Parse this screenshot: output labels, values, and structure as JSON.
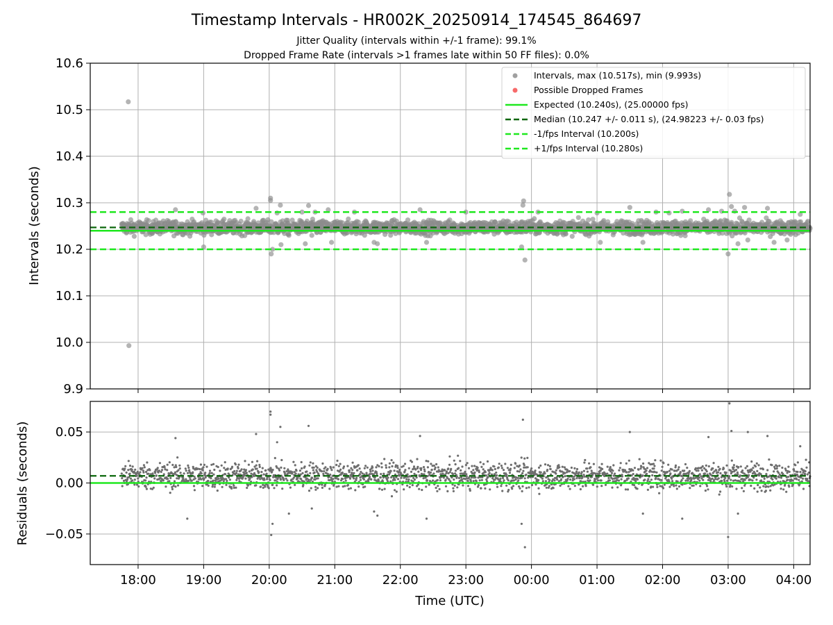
{
  "chart_data": [
    {
      "type": "scatter",
      "title": "Timestamp Intervals - HR002K_20250914_174545_864697",
      "subtitles": [
        "Jitter Quality (intervals within +/-1 frame): 99.1%",
        "Dropped Frame Rate (intervals >1 frames late within 50 FF files): 0.0%"
      ],
      "xlabel": "",
      "ylabel": "Intervals (seconds)",
      "xlim": [
        -0.73,
        10.25
      ],
      "x_tick_values": [
        0,
        1,
        2,
        3,
        4,
        5,
        6,
        7,
        8,
        9,
        10
      ],
      "x_tick_labels": [
        "18:00",
        "19:00",
        "20:00",
        "21:00",
        "22:00",
        "23:00",
        "00:00",
        "01:00",
        "02:00",
        "03:00",
        "04:00"
      ],
      "ylim": [
        9.9,
        10.6
      ],
      "y_ticks": [
        "9.9",
        "10.0",
        "10.1",
        "10.2",
        "10.3",
        "10.4",
        "10.5",
        "10.6"
      ],
      "y_tick_values": [
        9.9,
        10.0,
        10.1,
        10.2,
        10.3,
        10.4,
        10.5,
        10.6
      ],
      "grid": true,
      "legend_position": "top-right",
      "legend": [
        {
          "label": "Intervals, max (10.517s), min (9.993s)",
          "kind": "marker",
          "color": "#a0a0a0"
        },
        {
          "label": "Possible Dropped Frames",
          "kind": "marker",
          "color": "#f76a6a"
        },
        {
          "label": "Expected (10.240s), (25.00000 fps)",
          "kind": "line",
          "color": "#1ee81e",
          "dash": false
        },
        {
          "label": "Median (10.247 +/- 0.011 s), (24.98223 +/- 0.03 fps)",
          "kind": "line",
          "color": "#0a660a",
          "dash": true
        },
        {
          "label": "-1/fps Interval (10.200s)",
          "kind": "line",
          "color": "#1ee81e",
          "dash": true
        },
        {
          "label": "+1/fps Interval (10.280s)",
          "kind": "line",
          "color": "#1ee81e",
          "dash": true
        }
      ],
      "reference_lines": {
        "expected": 10.24,
        "median": 10.247,
        "minus_one_fps": 10.2,
        "plus_one_fps": 10.28
      },
      "series": [
        {
          "name": "Intervals, max (10.517s), min (9.993s)",
          "color": "#8c8c8c",
          "approximate_band": {
            "x_start": -0.25,
            "x_end": 10.25,
            "center": 10.247,
            "spread": 0.012
          },
          "points": [
            [
              -0.15,
              10.517
            ],
            [
              -0.14,
              9.993
            ],
            [
              0.57,
              10.285
            ],
            [
              0.99,
              10.278
            ],
            [
              1.0,
              10.205
            ],
            [
              1.8,
              10.288
            ],
            [
              1.9,
              10.262
            ],
            [
              2.02,
              10.31
            ],
            [
              2.02,
              10.305
            ],
            [
              2.03,
              10.19
            ],
            [
              2.05,
              10.2
            ],
            [
              2.12,
              10.278
            ],
            [
              2.17,
              10.295
            ],
            [
              2.18,
              10.21
            ],
            [
              2.3,
              10.23
            ],
            [
              2.5,
              10.28
            ],
            [
              2.55,
              10.212
            ],
            [
              2.6,
              10.294
            ],
            [
              2.65,
              10.23
            ],
            [
              2.7,
              10.28
            ],
            [
              2.9,
              10.285
            ],
            [
              2.95,
              10.215
            ],
            [
              3.3,
              10.28
            ],
            [
              3.6,
              10.215
            ],
            [
              3.65,
              10.212
            ],
            [
              4.3,
              10.285
            ],
            [
              4.4,
              10.215
            ],
            [
              4.5,
              10.235
            ],
            [
              5.0,
              10.28
            ],
            [
              5.85,
              10.205
            ],
            [
              5.87,
              10.295
            ],
            [
              5.88,
              10.304
            ],
            [
              5.9,
              10.177
            ],
            [
              5.95,
              10.26
            ],
            [
              6.1,
              10.28
            ],
            [
              7.0,
              10.278
            ],
            [
              7.05,
              10.215
            ],
            [
              7.5,
              10.29
            ],
            [
              7.7,
              10.215
            ],
            [
              7.9,
              10.28
            ],
            [
              8.1,
              10.278
            ],
            [
              8.3,
              10.282
            ],
            [
              8.7,
              10.285
            ],
            [
              8.9,
              10.282
            ],
            [
              9.0,
              10.19
            ],
            [
              9.02,
              10.318
            ],
            [
              9.05,
              10.292
            ],
            [
              9.1,
              10.282
            ],
            [
              9.15,
              10.212
            ],
            [
              9.25,
              10.29
            ],
            [
              9.3,
              10.22
            ],
            [
              9.6,
              10.288
            ],
            [
              9.7,
              10.215
            ],
            [
              9.9,
              10.22
            ],
            [
              10.1,
              10.275
            ]
          ]
        },
        {
          "name": "Possible Dropped Frames",
          "color": "#f76a6a",
          "points": []
        }
      ]
    },
    {
      "type": "scatter",
      "title": "",
      "xlabel": "Time (UTC)",
      "ylabel": "Residuals (seconds)",
      "xlim": [
        -0.73,
        10.25
      ],
      "x_tick_values": [
        0,
        1,
        2,
        3,
        4,
        5,
        6,
        7,
        8,
        9,
        10
      ],
      "x_tick_labels": [
        "18:00",
        "19:00",
        "20:00",
        "21:00",
        "22:00",
        "23:00",
        "00:00",
        "01:00",
        "02:00",
        "03:00",
        "04:00"
      ],
      "ylim": [
        -0.08,
        0.08
      ],
      "y_ticks": [
        "−0.05",
        "0.00",
        "0.05"
      ],
      "y_tick_values": [
        -0.05,
        0.0,
        0.05
      ],
      "grid": true,
      "reference_lines": {
        "zero": 0.0,
        "median_residual": 0.007
      },
      "series": [
        {
          "name": "",
          "color": "#6e6e6e",
          "approximate_band": {
            "x_start": -0.25,
            "x_end": 10.25,
            "center": 0.007,
            "spread": 0.011
          },
          "points": [
            [
              1.8,
              0.048
            ],
            [
              2.02,
              0.07
            ],
            [
              2.02,
              0.067
            ],
            [
              2.03,
              -0.051
            ],
            [
              2.05,
              -0.04
            ],
            [
              2.12,
              0.04
            ],
            [
              2.17,
              0.055
            ],
            [
              2.3,
              -0.03
            ],
            [
              2.6,
              0.056
            ],
            [
              2.65,
              -0.025
            ],
            [
              0.57,
              0.044
            ],
            [
              0.75,
              -0.035
            ],
            [
              3.6,
              -0.028
            ],
            [
              3.65,
              -0.032
            ],
            [
              4.3,
              0.046
            ],
            [
              4.4,
              -0.035
            ],
            [
              5.85,
              -0.04
            ],
            [
              5.87,
              0.062
            ],
            [
              5.9,
              -0.063
            ],
            [
              7.5,
              0.05
            ],
            [
              7.7,
              -0.03
            ],
            [
              8.3,
              -0.035
            ],
            [
              8.7,
              0.045
            ],
            [
              9.0,
              -0.053
            ],
            [
              9.02,
              0.078
            ],
            [
              9.05,
              0.051
            ],
            [
              9.15,
              -0.03
            ],
            [
              9.3,
              0.05
            ],
            [
              9.6,
              0.046
            ],
            [
              10.1,
              0.036
            ]
          ]
        }
      ]
    }
  ]
}
